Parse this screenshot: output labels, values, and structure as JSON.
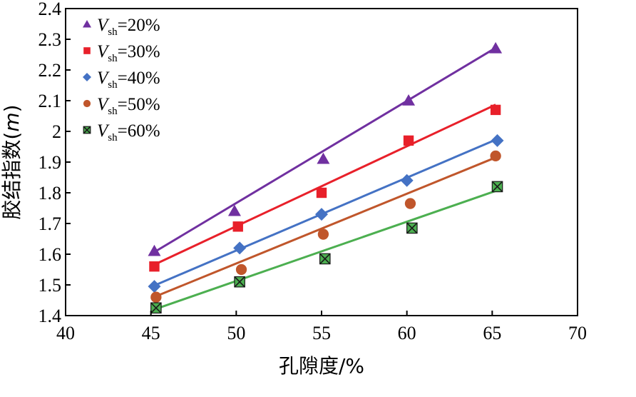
{
  "chart_data": {
    "type": "scatter",
    "title": "",
    "xlabel": "孔隙度/%",
    "ylabel": "胶结指数",
    "ylabel_var": "m",
    "xlim": [
      40,
      70
    ],
    "ylim": [
      1.4,
      2.4
    ],
    "xticks": [
      "40",
      "45",
      "50",
      "55",
      "60",
      "65",
      "70"
    ],
    "yticks": [
      "1.4",
      "1.5",
      "1.6",
      "1.7",
      "1.8",
      "1.9",
      "2",
      "2.1",
      "2.2",
      "2.3",
      "2.4"
    ],
    "grid": false,
    "legend_position": "top-left",
    "series": [
      {
        "name_var": "V",
        "name_sub": "sh",
        "name_value": "=20%",
        "marker": "triangle",
        "color": "#7030A0",
        "points": [
          [
            45.2,
            1.61
          ],
          [
            49.9,
            1.74
          ],
          [
            55.1,
            1.91
          ],
          [
            60.1,
            2.1
          ],
          [
            65.2,
            2.27
          ]
        ],
        "fit": [
          [
            45.2,
            1.607
          ],
          [
            65.2,
            2.272
          ]
        ]
      },
      {
        "name_var": "V",
        "name_sub": "sh",
        "name_value": "=30%",
        "marker": "square",
        "color": "#E8202A",
        "points": [
          [
            45.2,
            1.56
          ],
          [
            50.1,
            1.69
          ],
          [
            55.0,
            1.8
          ],
          [
            60.1,
            1.97
          ],
          [
            65.2,
            2.07
          ]
        ],
        "fit": [
          [
            45.2,
            1.566
          ],
          [
            65.2,
            2.087
          ]
        ]
      },
      {
        "name_var": "V",
        "name_sub": "sh",
        "name_value": "=40%",
        "marker": "diamond",
        "color": "#4472C4",
        "points": [
          [
            45.2,
            1.495
          ],
          [
            50.2,
            1.62
          ],
          [
            55.0,
            1.73
          ],
          [
            60.0,
            1.84
          ],
          [
            65.3,
            1.97
          ]
        ],
        "fit": [
          [
            45.2,
            1.498
          ],
          [
            65.3,
            1.975
          ]
        ]
      },
      {
        "name_var": "V",
        "name_sub": "sh",
        "name_value": "=50%",
        "marker": "circle",
        "color": "#C0562B",
        "points": [
          [
            45.3,
            1.46
          ],
          [
            50.3,
            1.55
          ],
          [
            55.1,
            1.665
          ],
          [
            60.2,
            1.765
          ],
          [
            65.2,
            1.92
          ]
        ],
        "fit": [
          [
            45.3,
            1.463
          ],
          [
            65.2,
            1.915
          ]
        ]
      },
      {
        "name_var": "V",
        "name_sub": "sh",
        "name_value": "=60%",
        "marker": "x-square",
        "color": "#4CAF50",
        "points": [
          [
            45.3,
            1.425
          ],
          [
            50.2,
            1.51
          ],
          [
            55.2,
            1.585
          ],
          [
            60.3,
            1.685
          ],
          [
            65.3,
            1.82
          ]
        ],
        "fit": [
          [
            45.3,
            1.422
          ],
          [
            65.3,
            1.808
          ]
        ]
      }
    ]
  }
}
